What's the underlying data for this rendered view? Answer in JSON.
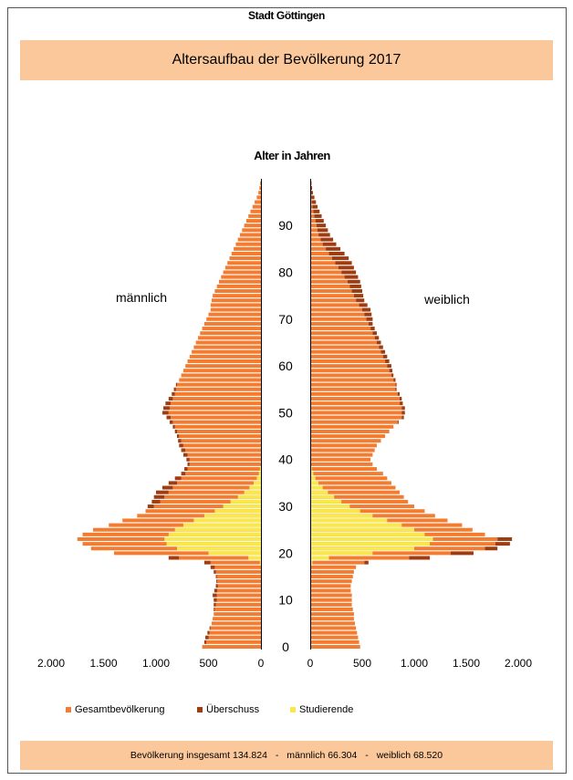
{
  "header": {
    "city": "Stadt Göttingen",
    "title": "Altersaufbau der Bevölkerung 2017"
  },
  "footer": {
    "total": "Bevölkerung insgesamt 134.824",
    "sep1": "-",
    "male": "männlich 66.304",
    "sep2": "-",
    "female": "weiblich 68.520"
  },
  "legend": {
    "items": [
      {
        "label": "Gesamtbevölkerung",
        "color": "#f47c30"
      },
      {
        "label": "Überschuss",
        "color": "#9e3c12"
      },
      {
        "label": "Studierende",
        "color": "#f9e84a"
      }
    ]
  },
  "chart_data": {
    "type": "population_pyramid",
    "title": "Alter in Jahren",
    "left_label": "männlich",
    "right_label": "weiblich",
    "x_ticks_left": [
      "2.000",
      "1.500",
      "1.000",
      "500",
      "0"
    ],
    "x_ticks_right": [
      "0",
      "500",
      "1.000",
      "1.500",
      "2.000"
    ],
    "x_tick_values": [
      0,
      500,
      1000,
      1500,
      2000
    ],
    "age_ticks": [
      0,
      10,
      20,
      30,
      40,
      50,
      60,
      70,
      80,
      90
    ],
    "age_range": [
      0,
      99
    ],
    "xlim": [
      0,
      2000
    ],
    "colors": {
      "total": "#f47c30",
      "surplus": "#9e3c12",
      "students": "#f9e84a"
    },
    "male_total": [
      560,
      520,
      500,
      490,
      480,
      470,
      460,
      450,
      440,
      430,
      420,
      420,
      415,
      410,
      415,
      420,
      430,
      440,
      480,
      780,
      1400,
      1620,
      1700,
      1750,
      1700,
      1600,
      1450,
      1320,
      1180,
      1100,
      1020,
      960,
      920,
      880,
      840,
      800,
      760,
      720,
      700,
      680,
      680,
      700,
      720,
      740,
      760,
      780,
      800,
      820,
      840,
      860,
      880,
      870,
      860,
      840,
      820,
      810,
      800,
      780,
      760,
      740,
      720,
      700,
      680,
      660,
      640,
      620,
      600,
      580,
      560,
      540,
      520,
      500,
      480,
      480,
      470,
      460,
      440,
      420,
      400,
      380,
      360,
      340,
      320,
      300,
      280,
      260,
      240,
      220,
      200,
      180,
      160,
      140,
      120,
      100,
      80,
      60,
      40,
      25,
      15,
      8
    ],
    "male_surplus": [
      0,
      20,
      30,
      20,
      10,
      0,
      0,
      0,
      10,
      20,
      30,
      40,
      30,
      20,
      10,
      10,
      20,
      40,
      60,
      100,
      0,
      0,
      0,
      0,
      0,
      0,
      0,
      0,
      0,
      0,
      60,
      80,
      100,
      120,
      100,
      80,
      60,
      40,
      30,
      20,
      30,
      40,
      40,
      40,
      30,
      20,
      20,
      20,
      30,
      40,
      60,
      60,
      50,
      40,
      30,
      20,
      10,
      0,
      0,
      0,
      0,
      0,
      0,
      0,
      0,
      0,
      0,
      0,
      0,
      0,
      0,
      0,
      0,
      0,
      0,
      0,
      0,
      0,
      0,
      0,
      0,
      0,
      0,
      0,
      0,
      0,
      0,
      0,
      0,
      0,
      0,
      0,
      0,
      0,
      0,
      0,
      0,
      0,
      0,
      0
    ],
    "male_students": [
      0,
      0,
      0,
      0,
      0,
      0,
      0,
      0,
      0,
      0,
      0,
      0,
      0,
      0,
      0,
      0,
      0,
      0,
      10,
      120,
      500,
      800,
      900,
      920,
      880,
      820,
      740,
      640,
      540,
      440,
      360,
      290,
      220,
      160,
      110,
      70,
      40,
      20,
      10,
      0,
      0,
      0,
      0,
      0,
      0,
      0,
      0,
      0,
      0,
      0,
      0,
      0,
      0,
      0,
      0,
      0,
      0,
      0,
      0,
      0,
      0,
      0,
      0,
      0,
      0,
      0,
      0,
      0,
      0,
      0,
      0,
      0,
      0,
      0,
      0,
      0,
      0,
      0,
      0,
      0,
      0,
      0,
      0,
      0,
      0,
      0,
      0,
      0,
      0,
      0,
      0,
      0,
      0,
      0,
      0,
      0,
      0,
      0,
      0,
      0
    ],
    "female_total": [
      480,
      470,
      460,
      450,
      440,
      430,
      420,
      420,
      410,
      400,
      400,
      400,
      390,
      390,
      400,
      410,
      420,
      440,
      520,
      950,
      1350,
      1680,
      1780,
      1800,
      1680,
      1560,
      1460,
      1320,
      1200,
      1100,
      1000,
      940,
      900,
      860,
      820,
      780,
      740,
      700,
      640,
      600,
      580,
      600,
      620,
      640,
      680,
      720,
      760,
      800,
      840,
      880,
      880,
      880,
      860,
      860,
      840,
      820,
      820,
      800,
      780,
      760,
      740,
      720,
      700,
      680,
      660,
      640,
      620,
      600,
      580,
      560,
      540,
      520,
      500,
      470,
      440,
      420,
      400,
      380,
      360,
      330,
      300,
      270,
      240,
      210,
      180,
      150,
      120,
      100,
      80,
      70,
      60,
      50,
      40,
      30,
      20,
      15,
      10,
      6,
      4,
      2
    ],
    "female_surplus": [
      0,
      0,
      0,
      0,
      0,
      0,
      0,
      0,
      0,
      0,
      0,
      0,
      0,
      0,
      0,
      0,
      0,
      0,
      40,
      200,
      220,
      120,
      140,
      140,
      0,
      0,
      0,
      0,
      0,
      0,
      0,
      0,
      0,
      0,
      0,
      0,
      0,
      0,
      0,
      0,
      0,
      0,
      0,
      0,
      0,
      0,
      0,
      0,
      10,
      20,
      30,
      30,
      30,
      20,
      20,
      10,
      10,
      20,
      20,
      30,
      40,
      40,
      40,
      40,
      40,
      40,
      40,
      40,
      40,
      40,
      60,
      70,
      80,
      80,
      80,
      90,
      100,
      110,
      120,
      130,
      140,
      150,
      160,
      160,
      150,
      140,
      130,
      120,
      110,
      100,
      90,
      80,
      70,
      60,
      50,
      40,
      30,
      20,
      14,
      10
    ],
    "female_students": [
      0,
      0,
      0,
      0,
      0,
      0,
      0,
      0,
      0,
      0,
      0,
      0,
      0,
      0,
      0,
      0,
      0,
      0,
      20,
      180,
      600,
      1000,
      1150,
      1180,
      1100,
      1000,
      880,
      740,
      600,
      480,
      380,
      300,
      230,
      170,
      120,
      80,
      50,
      30,
      15,
      5,
      0,
      0,
      0,
      0,
      0,
      0,
      0,
      0,
      0,
      0,
      0,
      0,
      0,
      0,
      0,
      0,
      0,
      0,
      0,
      0,
      0,
      0,
      0,
      0,
      0,
      0,
      0,
      0,
      0,
      0,
      0,
      0,
      0,
      0,
      0,
      0,
      0,
      0,
      0,
      0,
      0,
      0,
      0,
      0,
      0,
      0,
      0,
      0,
      0,
      0,
      0,
      0,
      0,
      0,
      0,
      0,
      0,
      0,
      0,
      0
    ]
  }
}
